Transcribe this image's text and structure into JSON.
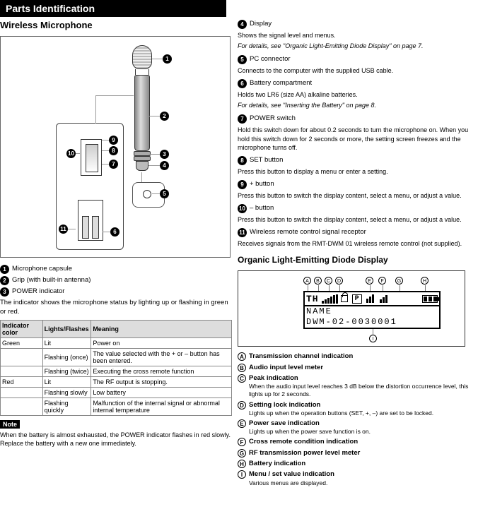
{
  "header": "Parts Identification",
  "left": {
    "subhead": "Wireless Microphone",
    "items": [
      {
        "n": "1",
        "label": "Microphone capsule"
      },
      {
        "n": "2",
        "label": "Grip (with built-in antenna)"
      },
      {
        "n": "3",
        "label": "POWER indicator"
      },
      {
        "n": "4",
        "label": "Display"
      },
      {
        "n": "5",
        "label": "PC connector"
      },
      {
        "n": "6",
        "label": "Battery compartment"
      },
      {
        "n": "7",
        "label": "POWER switch"
      },
      {
        "n": "8",
        "label": "SET button"
      },
      {
        "n": "9",
        "label": "+ button"
      },
      {
        "n": "10",
        "label": "– button"
      },
      {
        "n": "11",
        "label": "Wireless remote control signal receptor"
      }
    ],
    "indicator": {
      "intro": "The indicator shows the microphone status by lighting up or flashing in green or red.",
      "rows": [
        {
          "color": "Green",
          "state": "Lit",
          "meaning": "Power on"
        },
        {
          "color": "",
          "state": "Flashing (once)",
          "meaning": "The value selected with the + or – button has been entered."
        },
        {
          "color": "",
          "state": "Flashing (twice)",
          "meaning": "Executing the cross remote function"
        },
        {
          "color": "Red",
          "state": "Lit",
          "meaning": "The RF output is stopping."
        },
        {
          "color": "",
          "state": "Flashing slowly",
          "meaning": "Low battery"
        },
        {
          "color": "",
          "state": "Flashing quickly",
          "meaning": "Malfunction of the internal signal or abnormal internal temperature"
        }
      ]
    },
    "note_label": "Note",
    "note_text": "When the battery is almost exhausted, the POWER indicator flashes in red slowly. Replace the battery with a new one immediately."
  },
  "right": {
    "display_intro": "Shows the signal level and menus.",
    "details_link": "For details, see \"Organic Light-Emitting Diode Display\" on page 7.",
    "pc_text": "Connects to the computer with the supplied USB cable.",
    "battery_text": "Holds two LR6 (size AA) alkaline batteries.",
    "battery_details": "For details, see \"Inserting the Battery\" on page 8.",
    "power_text": "Hold this switch down for about 0.2 seconds to turn the microphone on. When you hold this switch down for 2 seconds or more, the setting screen freezes and the microphone turns off.",
    "set_text": "Press this button to display a menu or enter a setting.",
    "plus_text": "Press this button to switch the display content, select a menu, or adjust a value.",
    "minus_text": "Press this button to switch the display content, select a menu, or adjust a value.",
    "receptor_text": "Receives signals from the RMT-DWM 01 wireless remote control (not supplied).",
    "lcd_head": "Organic Light-Emitting Diode Display",
    "lcd_th": "TH",
    "lcd_name": "NAME",
    "lcd_serial": "DWM-02-0030001",
    "lcd_indicators": [
      {
        "l": "A",
        "label": "Transmission channel indication"
      },
      {
        "l": "B",
        "label": "Audio input level meter"
      },
      {
        "l": "C",
        "label": "Peak indication",
        "desc": "When the audio input level reaches 3 dB below the distortion occurrence level, this lights up for 2 seconds."
      },
      {
        "l": "D",
        "label": "Setting lock indication",
        "desc": "Lights up when the operation buttons (SET, +, –) are set to be locked."
      },
      {
        "l": "E",
        "label": "Power save indication",
        "desc": "Lights up when the power save function is on."
      },
      {
        "l": "F",
        "label": "Cross remote condition indication"
      },
      {
        "l": "G",
        "label": "RF transmission power level meter"
      },
      {
        "l": "H",
        "label": "Battery indication"
      },
      {
        "l": "I",
        "label": "Menu / set value indication",
        "desc": "Various menus are displayed."
      }
    ]
  }
}
